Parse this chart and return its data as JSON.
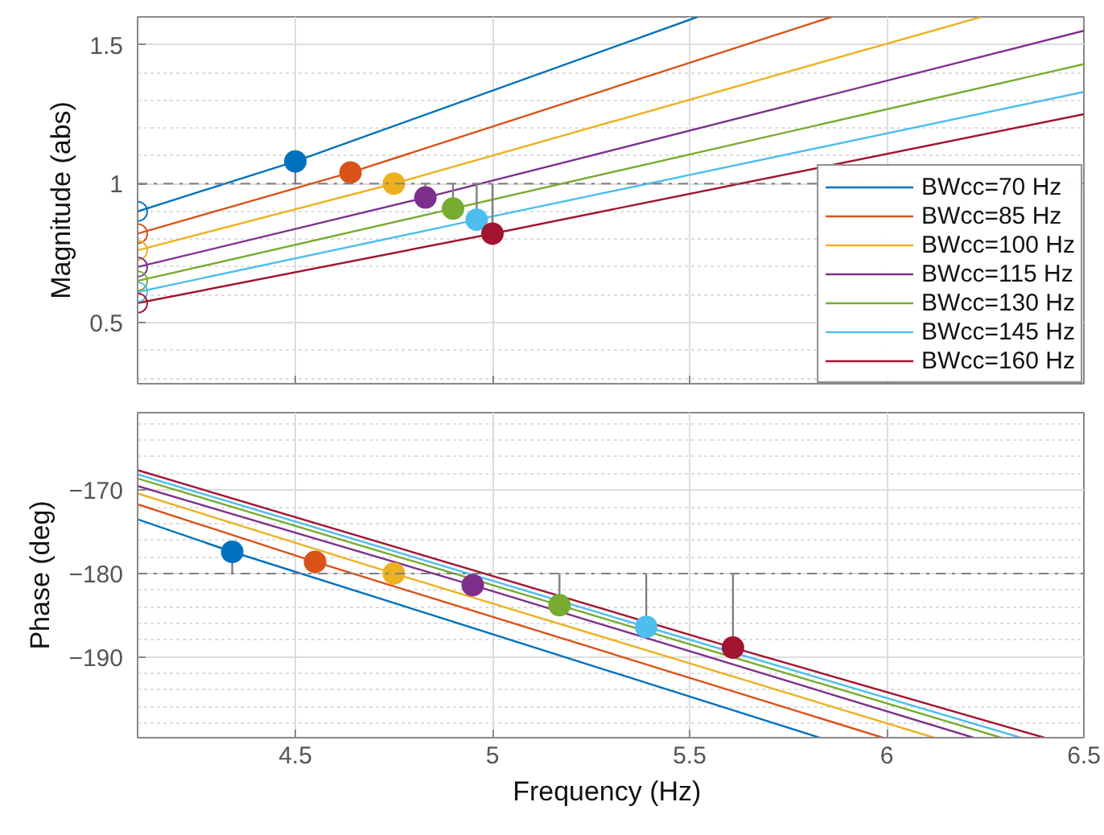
{
  "chart_data": [
    {
      "type": "line",
      "ylabel": "Magnitude (abs)",
      "xlim": [
        4.1,
        6.5
      ],
      "ylim": [
        0.28,
        1.6
      ],
      "xticks": [
        4.5,
        5,
        5.5,
        6,
        6.5
      ],
      "yticks": [
        0.5,
        1,
        1.5
      ],
      "tick_labels": "y",
      "grid": true,
      "legend": "bottom right",
      "line_style": "solid",
      "ref_lines": [
        {
          "axis": "y",
          "value": 1,
          "color": "#808080",
          "line_style": "dashed"
        }
      ],
      "series": [
        {
          "name": "BWcc=70 Hz",
          "color": "#0072bd",
          "x": [
            4.1,
            4.5,
            5.52
          ],
          "values": [
            0.9,
            1.08,
            1.6
          ]
        },
        {
          "name": "BWcc=85 Hz",
          "color": "#d95319",
          "x": [
            4.1,
            4.64,
            5.86
          ],
          "values": [
            0.82,
            1.04,
            1.6
          ]
        },
        {
          "name": "BWcc=100 Hz",
          "color": "#edb120",
          "x": [
            4.1,
            4.75,
            6.24
          ],
          "values": [
            0.76,
            1.0,
            1.6
          ]
        },
        {
          "name": "BWcc=115 Hz",
          "color": "#7e2f8e",
          "x": [
            4.1,
            4.83,
            6.5
          ],
          "values": [
            0.7,
            0.95,
            1.55
          ]
        },
        {
          "name": "BWcc=130 Hz",
          "color": "#77ac30",
          "x": [
            4.1,
            4.9,
            6.5
          ],
          "values": [
            0.65,
            0.91,
            1.43
          ]
        },
        {
          "name": "BWcc=145 Hz",
          "color": "#4dbeee",
          "x": [
            4.1,
            4.96,
            6.5
          ],
          "values": [
            0.61,
            0.87,
            1.33
          ]
        },
        {
          "name": "BWcc=160 Hz",
          "color": "#a2142f",
          "x": [
            4.1,
            5.0,
            6.5
          ],
          "values": [
            0.57,
            0.82,
            1.25
          ]
        },
        {
          "type": "scatter",
          "marker": "circle",
          "x": [
            4.5,
            4.64,
            4.75,
            4.83,
            4.9,
            4.96,
            5.0
          ],
          "values": [
            1.08,
            1.04,
            1.0,
            0.95,
            0.91,
            0.87,
            0.82
          ],
          "colors": [
            "#0072bd",
            "#d95319",
            "#edb120",
            "#7e2f8e",
            "#77ac30",
            "#4dbeee",
            "#a2142f"
          ],
          "errors": [
            [
              1,
              1.08
            ],
            [
              1,
              1.04
            ],
            null,
            [
              0.95,
              1
            ],
            [
              0.91,
              1
            ],
            [
              0.87,
              1
            ],
            [
              0.82,
              1
            ]
          ]
        },
        {
          "type": "scatter",
          "marker": "circle",
          "x": [
            4.1,
            4.1,
            4.1,
            4.1,
            4.1,
            4.1,
            4.1
          ],
          "values": [
            0.9,
            0.82,
            0.76,
            0.7,
            0.65,
            0.61,
            0.57
          ],
          "colors": [
            "#0072bd",
            "#d95319",
            "#edb120",
            "#7e2f8e",
            "#77ac30",
            "#4dbeee",
            "#a2142f"
          ]
        }
      ]
    },
    {
      "type": "line",
      "xlabel": "Frequency  (Hz)",
      "ylabel": "Phase (deg)",
      "xlim": [
        4.1,
        6.5
      ],
      "ylim": [
        -199.7,
        -160.7
      ],
      "xticks": [
        4.5,
        5,
        5.5,
        6,
        6.5
      ],
      "yticks": [
        -190,
        -180,
        -170
      ],
      "grid": true,
      "line_style": "solid",
      "ref_lines": [
        {
          "axis": "y",
          "value": -180,
          "color": "#808080",
          "line_style": "dashed"
        }
      ],
      "series": [
        {
          "color": "#0072bd",
          "x": [
            4.1,
            4.34,
            5.83
          ],
          "values": [
            -173.5,
            -177.4,
            -199.7
          ]
        },
        {
          "color": "#d95319",
          "x": [
            4.1,
            4.55,
            5.99
          ],
          "values": [
            -171.7,
            -178.6,
            -199.7
          ]
        },
        {
          "color": "#edb120",
          "x": [
            4.1,
            4.75,
            6.12
          ],
          "values": [
            -170.4,
            -180.0,
            -199.7
          ]
        },
        {
          "color": "#7e2f8e",
          "x": [
            4.1,
            4.95,
            6.22
          ],
          "values": [
            -169.5,
            -181.4,
            -199.7
          ]
        },
        {
          "color": "#77ac30",
          "x": [
            4.1,
            5.17,
            6.29
          ],
          "values": [
            -168.6,
            -183.8,
            -199.7
          ]
        },
        {
          "color": "#4dbeee",
          "x": [
            4.1,
            5.39,
            6.34
          ],
          "values": [
            -168.1,
            -186.4,
            -199.7
          ]
        },
        {
          "color": "#a2142f",
          "x": [
            4.1,
            5.61,
            6.4
          ],
          "values": [
            -167.6,
            -188.9,
            -199.7
          ]
        },
        {
          "type": "scatter",
          "marker": "circle",
          "x": [
            4.34,
            4.55,
            4.75,
            4.95,
            5.17,
            5.39,
            5.61
          ],
          "values": [
            -177.4,
            -178.6,
            -180.0,
            -181.4,
            -183.8,
            -186.4,
            -188.9
          ],
          "colors": [
            "#0072bd",
            "#d95319",
            "#edb120",
            "#7e2f8e",
            "#77ac30",
            "#4dbeee",
            "#a2142f"
          ],
          "errors": [
            [
              -180,
              -177.4
            ],
            [
              -180,
              -178.6
            ],
            null,
            [
              -181.4,
              -180
            ],
            [
              -183.8,
              -180
            ],
            [
              -186.4,
              -180
            ],
            [
              -188.9,
              -180
            ]
          ]
        }
      ]
    }
  ]
}
